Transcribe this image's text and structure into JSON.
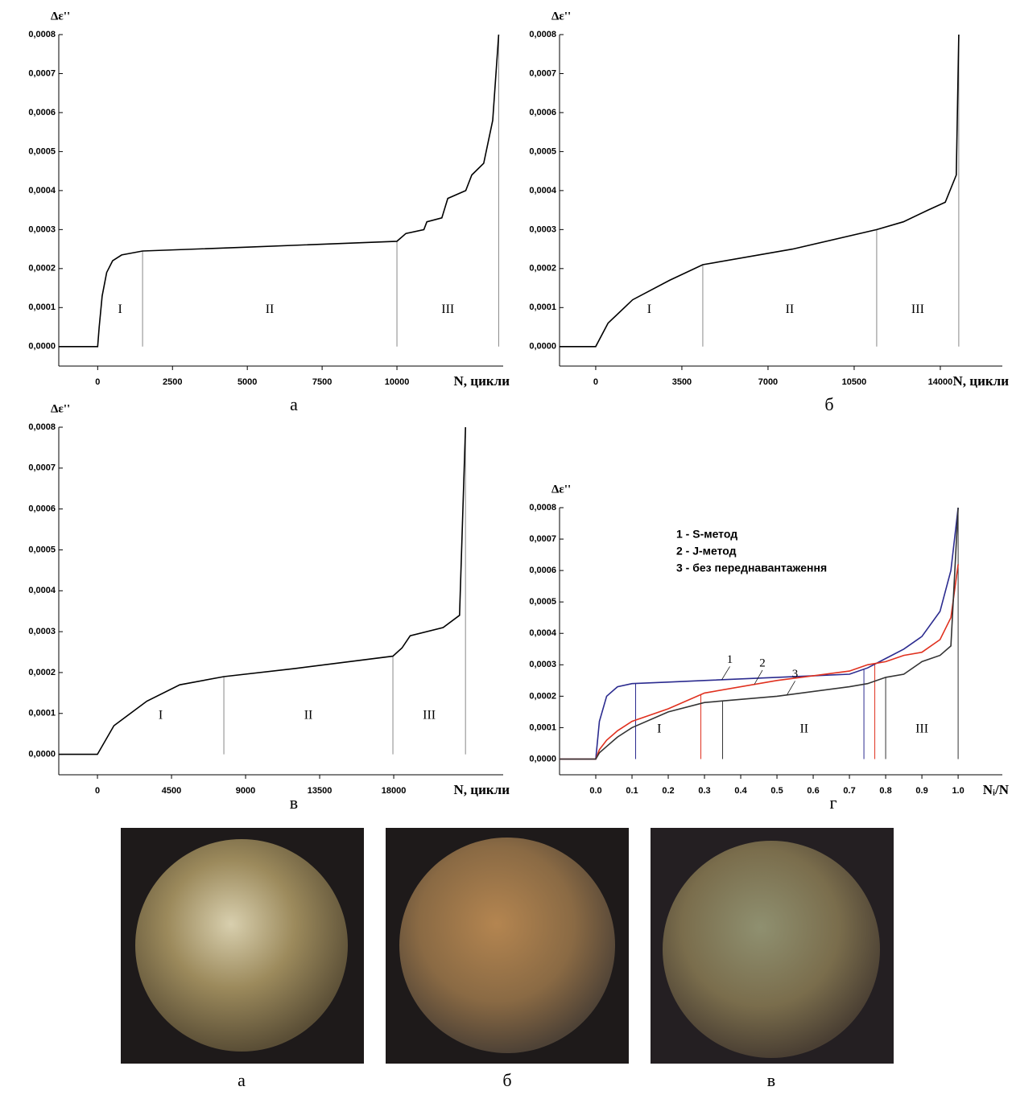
{
  "chart_data": [
    {
      "type": "line",
      "caption": "а",
      "ylabel": "Δε''",
      "xlabel": "N, цикли",
      "xlim": [
        -1300,
        13550
      ],
      "xticks": [
        0,
        2500,
        5000,
        7500,
        10000
      ],
      "ylim": [
        -5e-05,
        0.0008
      ],
      "yticks": [
        {
          "value": 0,
          "label": "0,0000"
        },
        {
          "value": 0.0001,
          "label": "0,0001"
        },
        {
          "value": 0.0002,
          "label": "0,0002"
        },
        {
          "value": 0.0003,
          "label": "0,0003"
        },
        {
          "value": 0.0004,
          "label": "0,0004"
        },
        {
          "value": 0.0005,
          "label": "0,0005"
        },
        {
          "value": 0.0006,
          "label": "0,0006"
        },
        {
          "value": 0.0007,
          "label": "0,0007"
        },
        {
          "value": 0.0008,
          "label": "0,0008"
        }
      ],
      "x": [
        -1300,
        0,
        50,
        150,
        300,
        500,
        800,
        1500,
        5000,
        10000,
        10300,
        10900,
        11000,
        11500,
        11700,
        12300,
        12500,
        12900,
        13200,
        13400
      ],
      "series": [
        {
          "color": "#000000",
          "values": [
            0,
            0,
            5e-05,
            0.00013,
            0.00019,
            0.00022,
            0.000235,
            0.000245,
            0.000255,
            0.00027,
            0.00029,
            0.0003,
            0.00032,
            0.00033,
            0.00038,
            0.0004,
            0.00044,
            0.00047,
            0.00058,
            0.0008
          ]
        }
      ],
      "dividers": [
        {
          "x": 1500,
          "color": "#888888"
        },
        {
          "x": 10000,
          "color": "#888888"
        },
        {
          "x": 13400,
          "color": "#888888"
        }
      ],
      "regions": [
        "I",
        "II",
        "III"
      ]
    },
    {
      "type": "line",
      "caption": "б",
      "ylabel": "Δε''",
      "xlabel": "N, цикли",
      "xlim": [
        -1470,
        16520
      ],
      "xticks": [
        0,
        3500,
        7000,
        10500,
        14000
      ],
      "ylim": [
        -5e-05,
        0.0008
      ],
      "yticks": [
        {
          "value": 0,
          "label": "0,0000"
        },
        {
          "value": 0.0001,
          "label": "0,0001"
        },
        {
          "value": 0.0002,
          "label": "0,0002"
        },
        {
          "value": 0.0003,
          "label": "0,0003"
        },
        {
          "value": 0.0004,
          "label": "0,0004"
        },
        {
          "value": 0.0005,
          "label": "0,0005"
        },
        {
          "value": 0.0006,
          "label": "0,0006"
        },
        {
          "value": 0.0007,
          "label": "0,0007"
        },
        {
          "value": 0.0008,
          "label": "0,0008"
        }
      ],
      "x": [
        -1470,
        0,
        500,
        1500,
        3000,
        4350,
        8000,
        11415,
        12500,
        13500,
        14200,
        14650,
        14750
      ],
      "series": [
        {
          "color": "#000000",
          "values": [
            0,
            0,
            6e-05,
            0.00012,
            0.00017,
            0.00021,
            0.00025,
            0.0003,
            0.00032,
            0.00035,
            0.00037,
            0.00044,
            0.0008
          ]
        }
      ],
      "dividers": [
        {
          "x": 4350,
          "color": "#888888"
        },
        {
          "x": 11415,
          "color": "#888888"
        },
        {
          "x": 14750,
          "color": "#888888"
        }
      ],
      "regions": [
        "I",
        "II",
        "III"
      ]
    },
    {
      "type": "line",
      "caption": "в",
      "ylabel": "Δε''",
      "xlabel": "N, цикли",
      "xlim": [
        -2350,
        24650
      ],
      "xticks": [
        0,
        4500,
        9000,
        13500,
        18000
      ],
      "ylim": [
        -5e-05,
        0.0008
      ],
      "yticks": [
        {
          "value": 0,
          "label": "0,0000"
        },
        {
          "value": 0.0001,
          "label": "0,0001"
        },
        {
          "value": 0.0002,
          "label": "0,0002"
        },
        {
          "value": 0.0003,
          "label": "0,0003"
        },
        {
          "value": 0.0004,
          "label": "0,0004"
        },
        {
          "value": 0.0005,
          "label": "0,0005"
        },
        {
          "value": 0.0006,
          "label": "0,0006"
        },
        {
          "value": 0.0007,
          "label": "0,0007"
        },
        {
          "value": 0.0008,
          "label": "0,0008"
        }
      ],
      "x": [
        -2350,
        0,
        1000,
        3000,
        5000,
        7680,
        12000,
        17950,
        18500,
        19000,
        21000,
        22000,
        22360
      ],
      "series": [
        {
          "color": "#000000",
          "values": [
            0,
            0,
            7e-05,
            0.00013,
            0.00017,
            0.00019,
            0.00021,
            0.00024,
            0.00026,
            0.00029,
            0.00031,
            0.00034,
            0.0008
          ]
        }
      ],
      "dividers": [
        {
          "x": 7680,
          "color": "#888888"
        },
        {
          "x": 17950,
          "color": "#888888"
        },
        {
          "x": 22360,
          "color": "#888888"
        }
      ],
      "regions": [
        "I",
        "II",
        "III"
      ]
    },
    {
      "type": "line",
      "caption": "г",
      "ylabel": "Δε''",
      "xlabel": "Nᵢ/N",
      "xlim": [
        -0.1,
        1.122
      ],
      "xticks": [
        {
          "value": 0,
          "label": "0.0"
        },
        0.1,
        0.2,
        0.3,
        0.4,
        0.5,
        0.6,
        0.7,
        0.8,
        0.9,
        {
          "value": 1,
          "label": "1.0"
        }
      ],
      "ylim": [
        -5e-05,
        0.0008
      ],
      "yticks": [
        {
          "value": 0,
          "label": "0,0000"
        },
        {
          "value": 0.0001,
          "label": "0,0001"
        },
        {
          "value": 0.0002,
          "label": "0,0002"
        },
        {
          "value": 0.0003,
          "label": "0,0003"
        },
        {
          "value": 0.0004,
          "label": "0,0004"
        },
        {
          "value": 0.0005,
          "label": "0,0005"
        },
        {
          "value": 0.0006,
          "label": "0,0006"
        },
        {
          "value": 0.0007,
          "label": "0,0007"
        },
        {
          "value": 0.0008,
          "label": "0,0008"
        }
      ],
      "x": [
        -0.1,
        0,
        0.01,
        0.03,
        0.06,
        0.1,
        0.2,
        0.3,
        0.5,
        0.7,
        0.75,
        0.8,
        0.85,
        0.9,
        0.95,
        0.98,
        1.0
      ],
      "series": [
        {
          "name": "1 - S-метод",
          "label": "1",
          "color": "#2b2b8f",
          "values": [
            0,
            0,
            0.00012,
            0.0002,
            0.00023,
            0.00024,
            0.000245,
            0.00025,
            0.00026,
            0.00027,
            0.00029,
            0.00032,
            0.00035,
            0.00039,
            0.00047,
            0.0006,
            0.0008
          ]
        },
        {
          "name": "2 - J-метод",
          "label": "2",
          "color": "#e0301e",
          "values": [
            0,
            0,
            3e-05,
            6e-05,
            9e-05,
            0.00012,
            0.00016,
            0.00021,
            0.00025,
            0.00028,
            0.0003,
            0.00031,
            0.00033,
            0.00034,
            0.00038,
            0.00045,
            0.00062
          ]
        },
        {
          "name": "3 - без переднавантаження",
          "label": "3",
          "color": "#333333",
          "values": [
            0,
            0,
            2e-05,
            4e-05,
            7e-05,
            0.0001,
            0.00015,
            0.00018,
            0.0002,
            0.00023,
            0.00024,
            0.00026,
            0.00027,
            0.00031,
            0.00033,
            0.00036,
            0.0008
          ]
        }
      ],
      "dividers": [
        {
          "x": 0.11,
          "color": "#2b2b8f"
        },
        {
          "x": 0.74,
          "color": "#2b2b8f"
        },
        {
          "x": 0.29,
          "color": "#e0301e"
        },
        {
          "x": 0.77,
          "color": "#e0301e"
        },
        {
          "x": 0.35,
          "color": "#333333"
        },
        {
          "x": 0.8,
          "color": "#333333"
        },
        {
          "x": 1.0,
          "color": "#333333"
        }
      ],
      "regions": [
        "I",
        "II",
        "III"
      ]
    }
  ],
  "photos": {
    "captions": [
      "а",
      "б",
      "в"
    ]
  }
}
